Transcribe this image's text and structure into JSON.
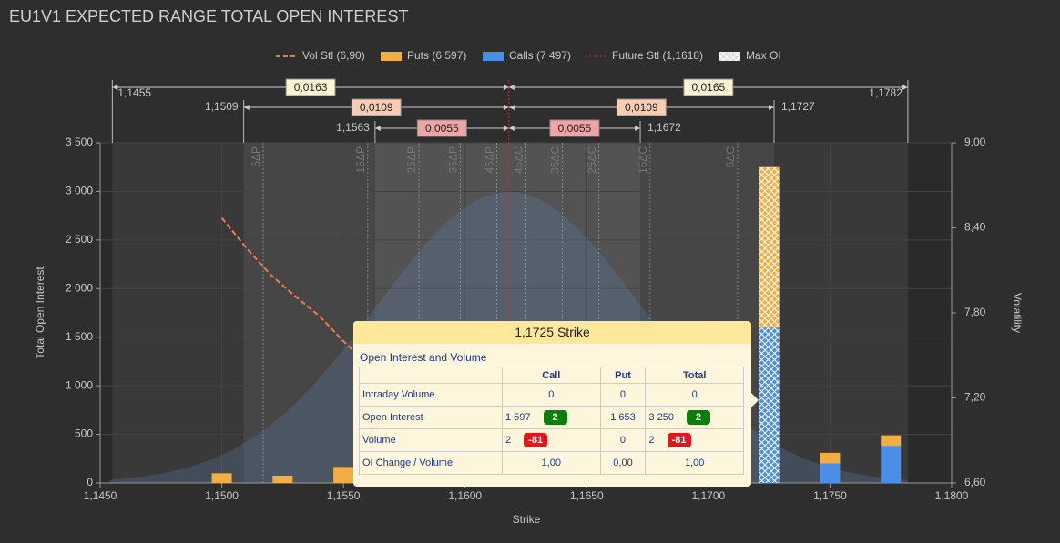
{
  "chart_data": {
    "type": "bar",
    "title": "EU1V1 EXPECTED RANGE TOTAL OPEN INTEREST",
    "x_label": "Strike",
    "y_label": "Total Open Interest",
    "y2_label": "Volatility",
    "x": [
      1.15,
      1.1525,
      1.155,
      1.1725,
      1.175,
      1.1775
    ],
    "series": [
      {
        "name": "Calls (7 497)",
        "color": "#4a8ee6",
        "values": [
          0,
          0,
          0,
          1597,
          200,
          380
        ]
      },
      {
        "name": "Puts (6 597)",
        "color": "#f2ae44",
        "values": [
          100,
          75,
          165,
          1653,
          110,
          110
        ]
      }
    ],
    "vol_stl": {
      "name": "Vol Stl (6,90)",
      "color": "#f07c4a",
      "axis": "y2",
      "x": [
        1.15,
        1.151,
        1.152,
        1.153,
        1.154,
        1.155,
        1.1555
      ],
      "values": [
        8.47,
        8.26,
        8.07,
        7.92,
        7.78,
        7.6,
        7.52
      ]
    },
    "future_stl": {
      "name": "Future Stl (1,1618)",
      "color": "#e0262a",
      "value": 1.1618
    },
    "max_oi": {
      "name": "Max OI",
      "strike": 1.1725
    },
    "xlim": [
      1.145,
      1.18
    ],
    "xticks": [
      {
        "value": 1.145,
        "label": "1,1450"
      },
      {
        "value": 1.15,
        "label": "1,1500"
      },
      {
        "value": 1.155,
        "label": "1,1550"
      },
      {
        "value": 1.16,
        "label": "1,1600"
      },
      {
        "value": 1.165,
        "label": "1,1650"
      },
      {
        "value": 1.17,
        "label": "1,1700"
      },
      {
        "value": 1.175,
        "label": "1,1750"
      },
      {
        "value": 1.18,
        "label": "1,1800"
      }
    ],
    "ylim": [
      0,
      3500
    ],
    "yticks": [
      0,
      500,
      {
        "value": 1000,
        "label": "1 000"
      },
      {
        "value": 1500,
        "label": "1 500"
      },
      {
        "value": 2000,
        "label": "2 000"
      },
      {
        "value": 2500,
        "label": "2 500"
      },
      {
        "value": 3000,
        "label": "3 000"
      },
      {
        "value": 3500,
        "label": "3 500"
      }
    ],
    "y2lim": [
      6.6,
      9.0
    ],
    "y2ticks": [
      {
        "value": 6.6,
        "label": "6,60"
      },
      {
        "value": 7.2,
        "label": "7,20"
      },
      {
        "value": 7.8,
        "label": "7,80"
      },
      {
        "value": 8.4,
        "label": "8,40"
      },
      {
        "value": 9.0,
        "label": "9,00"
      }
    ],
    "grid": true,
    "ranges": [
      {
        "color": "#fdf3d4",
        "low": {
          "value": 1.1455,
          "label": "1,1455"
        },
        "high": {
          "value": 1.1782,
          "label": "1,1782"
        },
        "left": {
          "value": 0.0163,
          "label": "0,0163"
        },
        "right": {
          "value": 0.0165,
          "label": "0,0165"
        }
      },
      {
        "color": "#f8cdb4",
        "low": {
          "value": 1.1509,
          "label": "1,1509"
        },
        "high": {
          "value": 1.1727,
          "label": "1,1727"
        },
        "left": {
          "value": 0.0109,
          "label": "0,0109"
        },
        "right": {
          "value": 0.0109,
          "label": "0,0109"
        }
      },
      {
        "color": "#f3a3a3",
        "low": {
          "value": 1.1563,
          "label": "1,1563"
        },
        "high": {
          "value": 1.1672,
          "label": "1,1672"
        },
        "left": {
          "value": 0.0055,
          "label": "0,0055"
        },
        "right": {
          "value": 0.0055,
          "label": "0,0055"
        }
      }
    ],
    "deltas": [
      {
        "value": 1.1517,
        "label": "5ΔP"
      },
      {
        "value": 1.156,
        "label": "15ΔP"
      },
      {
        "value": 1.1581,
        "label": "25ΔP"
      },
      {
        "value": 1.1598,
        "label": "35ΔP"
      },
      {
        "value": 1.1613,
        "label": "45ΔP"
      },
      {
        "value": 1.1625,
        "label": "45ΔC"
      },
      {
        "value": 1.164,
        "label": "35ΔC"
      },
      {
        "value": 1.1655,
        "label": "25ΔC"
      },
      {
        "value": 1.1676,
        "label": "15ΔC"
      },
      {
        "value": 1.1712,
        "label": "5ΔC"
      }
    ],
    "tooltip": {
      "title": "1,1725 Strike",
      "section": "Open Interest and Volume",
      "columns": [
        "Call",
        "Put",
        "Total"
      ],
      "rows": [
        {
          "label": "Intraday Volume",
          "call": "0",
          "put": "0",
          "total": "0"
        },
        {
          "label": "Open Interest",
          "call": "1 597",
          "call_change": "2",
          "put": "1 653",
          "total": "3 250",
          "total_change": "2"
        },
        {
          "label": "Volume",
          "call": "2",
          "call_change": "-81",
          "put": "0",
          "total": "2",
          "total_change": "-81"
        },
        {
          "label": "OI Change / Volume",
          "call": "1,00",
          "put": "0,00",
          "total": "1,00"
        }
      ]
    }
  }
}
